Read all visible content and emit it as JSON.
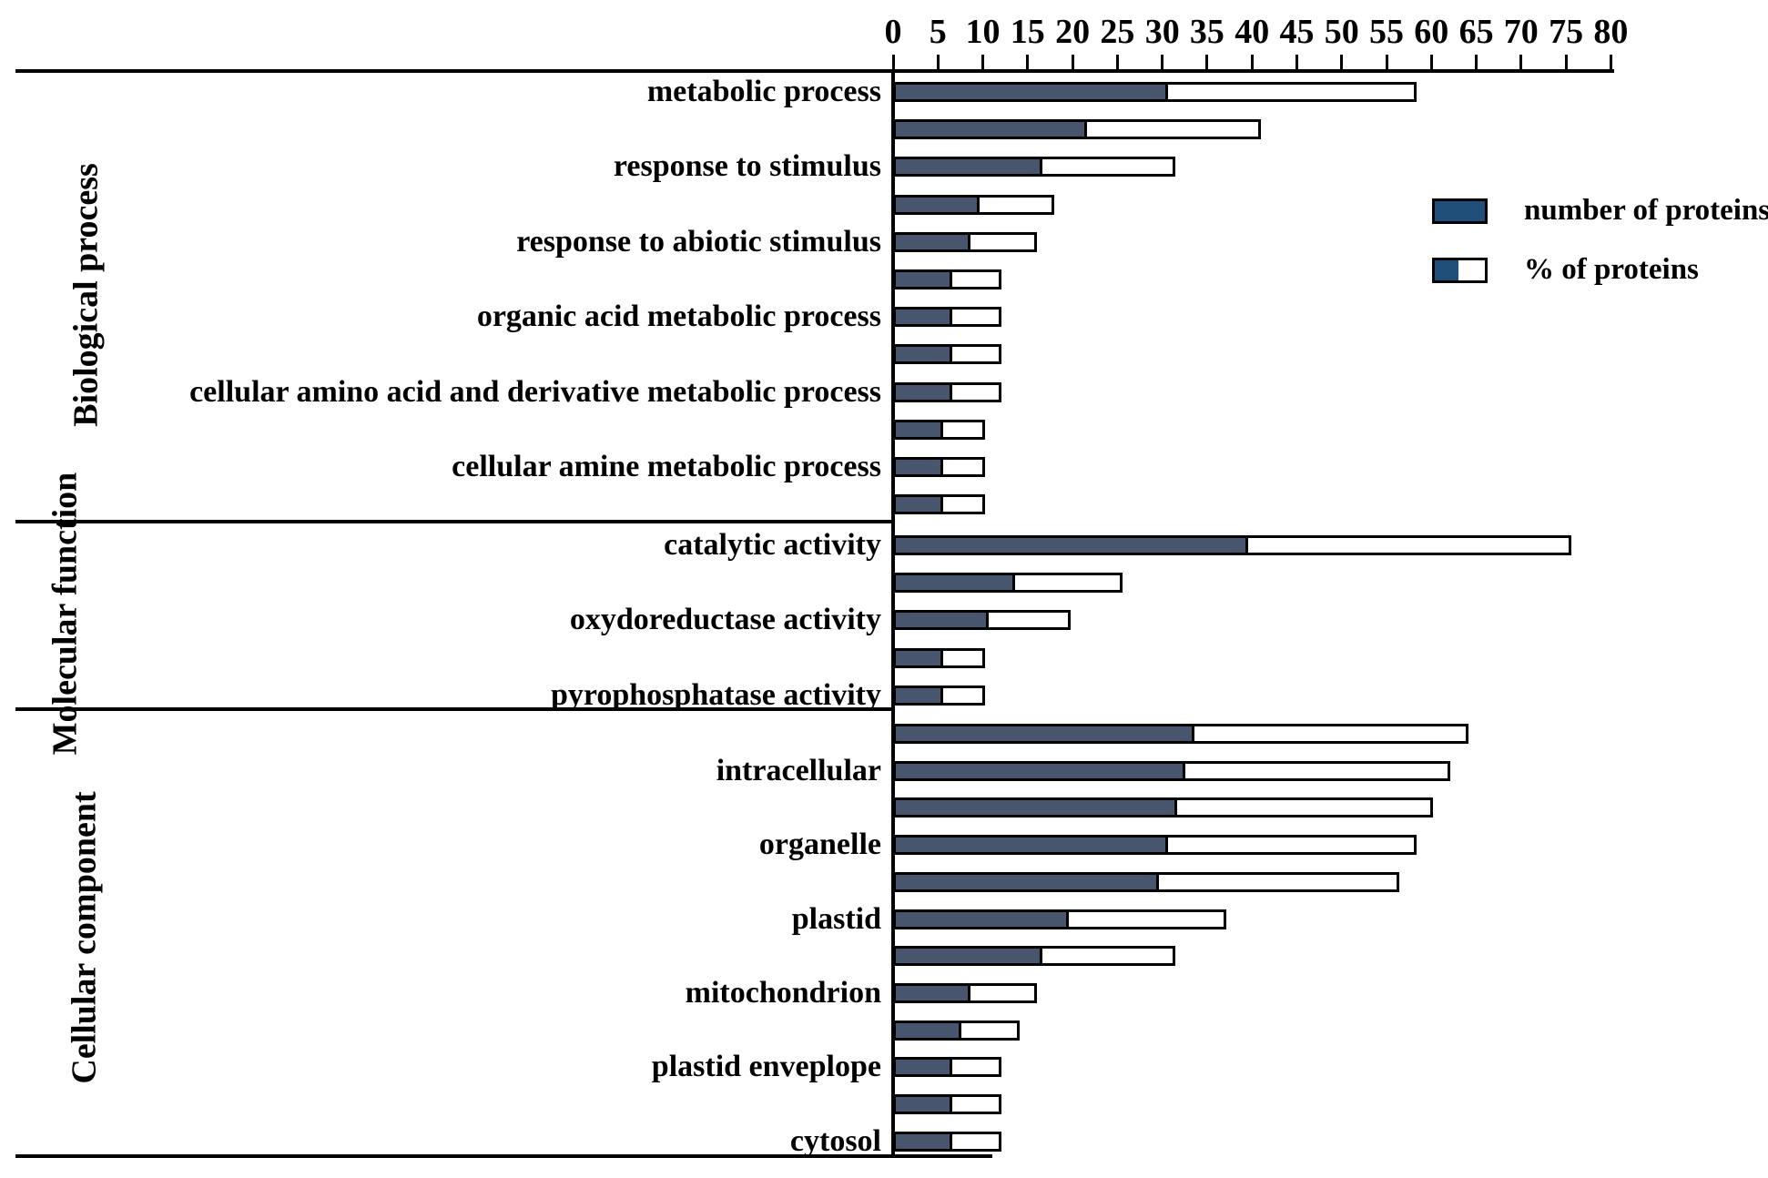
{
  "figure": {
    "colors": {
      "bar_number_fill": "#47566D",
      "legend_blue": "#1F4E79",
      "outline": "#000000",
      "background": "#FFFFFF"
    },
    "legend": [
      {
        "swatch": "solid-blue",
        "label": "number of proteins"
      },
      {
        "swatch": "split-blue-white",
        "label": "% of proteins"
      }
    ]
  },
  "chart_data": {
    "type": "bar",
    "orientation": "horizontal",
    "title": "",
    "xlabel": "",
    "ylabel": "",
    "axis": {
      "min": 0,
      "max": 80,
      "tick_step": 5,
      "position": "top"
    },
    "ticks": [
      0,
      5,
      10,
      15,
      20,
      25,
      30,
      35,
      40,
      45,
      50,
      55,
      60,
      65,
      70,
      75,
      80
    ],
    "grid": false,
    "legend_position": "upper-right",
    "encoding_note": "dark segment length = number of proteins; full outlined bar length = % of proteins (out of 52 identified proteins)",
    "sections": [
      {
        "name": "Biological process",
        "terms": [
          {
            "label": "metabolic process",
            "bars": [
              {
                "number": 30,
                "percent": 57.7
              },
              {
                "number": 21,
                "percent": 40.4
              }
            ]
          },
          {
            "label": "response to stimulus",
            "bars": [
              {
                "number": 16,
                "percent": 30.8
              },
              {
                "number": 9,
                "percent": 17.3
              }
            ]
          },
          {
            "label": "response to abiotic stimulus",
            "bars": [
              {
                "number": 8,
                "percent": 15.4
              },
              {
                "number": 6,
                "percent": 11.5
              }
            ]
          },
          {
            "label": "organic acid metabolic process",
            "bars": [
              {
                "number": 6,
                "percent": 11.5
              },
              {
                "number": 6,
                "percent": 11.5
              }
            ]
          },
          {
            "label": "cellular amino acid and derivative metabolic process",
            "bars": [
              {
                "number": 6,
                "percent": 11.5
              },
              {
                "number": 5,
                "percent": 9.6
              }
            ]
          },
          {
            "label": "cellular amine metabolic process",
            "bars": [
              {
                "number": 5,
                "percent": 9.6
              },
              {
                "number": 5,
                "percent": 9.6
              }
            ]
          }
        ]
      },
      {
        "name": "Molecular function",
        "terms": [
          {
            "label": "catalytic activity",
            "bars": [
              {
                "number": 39,
                "percent": 75.0
              },
              {
                "number": 13,
                "percent": 25.0
              }
            ]
          },
          {
            "label": "oxydoreductase activity",
            "bars": [
              {
                "number": 10,
                "percent": 19.2
              },
              {
                "number": 5,
                "percent": 9.6
              }
            ]
          },
          {
            "label": "pyrophosphatase activity",
            "bars": [
              {
                "number": 5,
                "percent": 9.6
              }
            ]
          }
        ]
      },
      {
        "name": "Cellular component",
        "terms": [
          {
            "label": "intracellular",
            "bars": [
              {
                "number": 33,
                "percent": 63.5
              },
              {
                "number": 32,
                "percent": 61.5
              }
            ]
          },
          {
            "label": "organelle",
            "bars": [
              {
                "number": 31,
                "percent": 59.6
              },
              {
                "number": 30,
                "percent": 57.7
              }
            ]
          },
          {
            "label": "plastid",
            "bars": [
              {
                "number": 29,
                "percent": 55.8
              },
              {
                "number": 19,
                "percent": 36.5
              }
            ]
          },
          {
            "label": "mitochondrion",
            "bars": [
              {
                "number": 16,
                "percent": 30.8
              },
              {
                "number": 8,
                "percent": 15.4
              }
            ]
          },
          {
            "label": "plastid enveplope",
            "bars": [
              {
                "number": 7,
                "percent": 13.5
              },
              {
                "number": 6,
                "percent": 11.5
              }
            ]
          },
          {
            "label": "cytosol",
            "bars": [
              {
                "number": 6,
                "percent": 11.5
              },
              {
                "number": 6,
                "percent": 11.5
              }
            ]
          }
        ]
      }
    ]
  }
}
